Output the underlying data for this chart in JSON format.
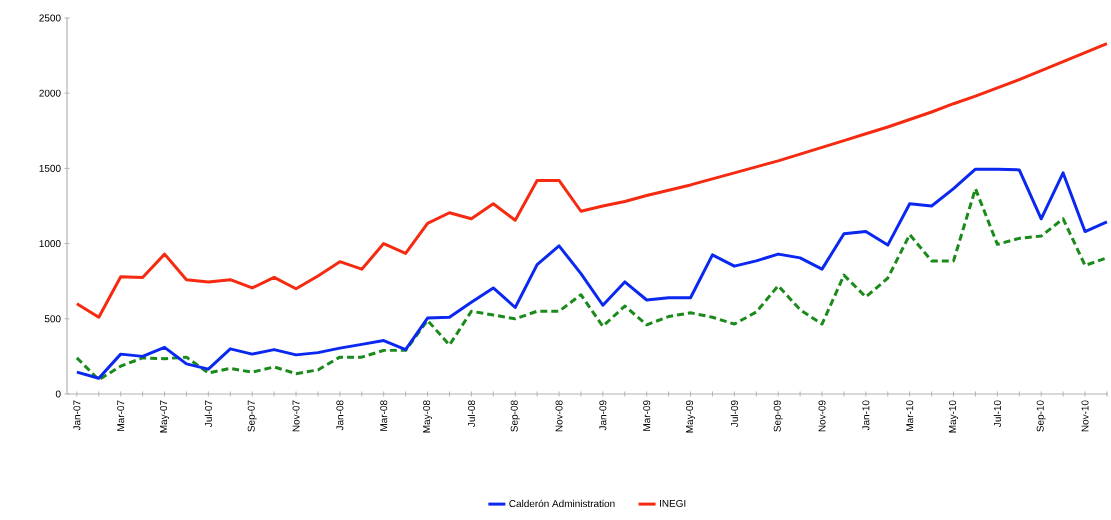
{
  "chart_data": {
    "type": "line",
    "categories": [
      "Jan-07",
      null,
      "Mar-07",
      null,
      "May-07",
      null,
      "Jul-07",
      null,
      "Sep-07",
      null,
      "Nov-07",
      null,
      "Jan-08",
      null,
      "Mar-08",
      null,
      "May-08",
      null,
      "Jul-08",
      null,
      "Sep-08",
      null,
      "Nov-08",
      null,
      "Jan-09",
      null,
      "Mar-09",
      null,
      "May-09",
      null,
      "Jul-09",
      null,
      "Sep-09",
      null,
      "Nov-09",
      null,
      "Jan-10",
      null,
      "Mar-10",
      null,
      "May-10",
      null,
      "Jul-10",
      null,
      "Sep-10",
      null,
      "Nov-10",
      null
    ],
    "series": [
      {
        "color": "#1a8a1a",
        "line_style": "dashed",
        "values": [
          240,
          95,
          185,
          240,
          235,
          245,
          140,
          170,
          145,
          180,
          135,
          160,
          245,
          245,
          290,
          290,
          490,
          325,
          550,
          525,
          500,
          550,
          550,
          660,
          450,
          585,
          460,
          515,
          540,
          510,
          465,
          545,
          720,
          560,
          465,
          790,
          645,
          770,
          1060,
          885,
          885,
          1365,
          995,
          1035,
          1050,
          1165,
          855,
          905
        ]
      },
      {
        "name": "Calderón Administration",
        "color": "#0a28f0",
        "line_style": "solid",
        "values": [
          145,
          105,
          265,
          250,
          310,
          200,
          165,
          300,
          265,
          295,
          260,
          275,
          305,
          330,
          355,
          295,
          505,
          510,
          610,
          705,
          575,
          860,
          985,
          800,
          590,
          745,
          625,
          640,
          640,
          925,
          850,
          885,
          930,
          905,
          830,
          1065,
          1080,
          990,
          1265,
          1250,
          1365,
          1495,
          1495,
          1490,
          1165,
          1470,
          1080,
          1145
        ]
      },
      {
        "name": "INEGI",
        "color": "#f52a10",
        "line_style": "solid",
        "values": [
          600,
          510,
          780,
          775,
          930,
          760,
          745,
          760,
          705,
          775,
          700,
          785,
          880,
          830,
          1000,
          935,
          1135,
          1205,
          1165,
          1265,
          1155,
          1420,
          1420,
          1215,
          1250,
          1280,
          1320,
          1355,
          1390,
          1430,
          1470,
          1510,
          1550,
          1595,
          1640,
          1685,
          1730,
          1775,
          1825,
          1875,
          1930,
          1980,
          2035,
          2090,
          2150,
          2210,
          2270,
          2330
        ]
      }
    ],
    "ylim": [
      0,
      2500
    ],
    "yticks": [
      0,
      500,
      1000,
      1500,
      2000,
      2500
    ],
    "grid": false,
    "legend": "bottom"
  }
}
